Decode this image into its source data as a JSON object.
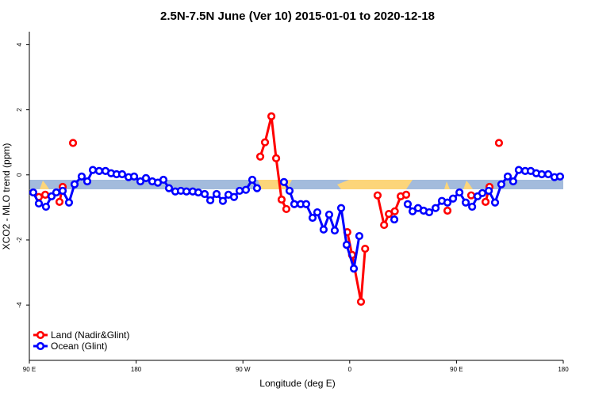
{
  "chart_data": {
    "type": "line",
    "title": "2.5N-7.5N June (Ver 10)   2015-01-01 to 2020-12-18",
    "x_label": "Longitude (deg E)",
    "y_label": "XCO2 - MLO trend (ppm)",
    "xlim": [
      90,
      540
    ],
    "xticks": [
      {
        "value": 90,
        "label": "90 E"
      },
      180,
      {
        "value": 270,
        "label": "90 W"
      },
      {
        "value": 360,
        "label": "0"
      },
      {
        "value": 450,
        "label": "90 E"
      },
      {
        "value": 540,
        "label": "180"
      }
    ],
    "ylim": [
      -5.7,
      4.4
    ],
    "yticks": [
      -4,
      -2,
      0,
      2,
      4
    ],
    "legend": "bottom-left",
    "series": [
      {
        "name": "Land (Nadir&Glint)",
        "color": "#ff0000",
        "x": [
          98,
          103.4,
          null,
          115.4,
          118.1,
          null,
          126.8,
          null,
          284.6,
          288.6,
          294,
          298,
          302.6,
          306.6,
          null,
          358,
          362,
          369.5,
          373,
          null,
          383.5,
          389,
          393,
          398,
          403,
          407.6,
          null,
          442.4,
          null,
          462.4,
          null,
          474.5,
          477.8,
          null,
          485.8
        ],
        "values": [
          -0.68,
          -0.61,
          null,
          -0.83,
          -0.37,
          null,
          0.98,
          null,
          0.56,
          1.0,
          1.8,
          0.51,
          -0.76,
          -1.05,
          null,
          -1.76,
          -2.46,
          -3.9,
          -2.27,
          null,
          -0.63,
          -1.54,
          -1.2,
          -1.12,
          -0.66,
          -0.61,
          null,
          -1.1,
          null,
          -0.63,
          null,
          -0.83,
          -0.37,
          null,
          0.98
        ]
      },
      {
        "name": "Ocean (Glint)",
        "color": "#0000ff",
        "x": [
          93.3,
          98,
          104,
          108.7,
          112.7,
          118.1,
          123.4,
          128.1,
          134.1,
          138.8,
          143.5,
          148.8,
          154.2,
          158.9,
          163.5,
          168.2,
          173.6,
          178.3,
          183.6,
          188.3,
          193.6,
          198.3,
          203,
          207.7,
          213,
          217.7,
          222.4,
          227.7,
          232.4,
          237.8,
          242.5,
          247.8,
          253.1,
          257.8,
          262.5,
          267.2,
          272.5,
          277.9,
          281.9,
          null,
          304.6,
          309.3,
          313.3,
          318.7,
          323.3,
          328.7,
          332.7,
          338,
          342.7,
          347.4,
          352.8,
          357.4,
          363.5,
          368.1,
          null,
          397.6,
          null,
          408.9,
          413,
          417.6,
          422.3,
          427,
          432.4,
          437.7,
          442.4,
          447.1,
          452.5,
          457.8,
          463.2,
          467.8,
          471.8,
          477.2,
          482.5,
          487.8,
          493.2,
          497.8,
          502.5,
          507.9,
          512.6,
          517.2,
          521.9,
          527.3,
          532.6,
          537.3
        ],
        "values": [
          -0.54,
          -0.88,
          -0.98,
          -0.66,
          -0.54,
          -0.49,
          -0.85,
          -0.29,
          -0.05,
          -0.2,
          0.15,
          0.12,
          0.12,
          0.05,
          0.02,
          0.02,
          -0.07,
          -0.05,
          -0.2,
          -0.1,
          -0.2,
          -0.24,
          -0.15,
          -0.41,
          -0.51,
          -0.49,
          -0.51,
          -0.51,
          -0.54,
          -0.59,
          -0.78,
          -0.59,
          -0.8,
          -0.61,
          -0.68,
          -0.49,
          -0.46,
          -0.15,
          -0.41,
          null,
          -0.22,
          -0.49,
          -0.9,
          -0.9,
          -0.9,
          -1.32,
          -1.15,
          -1.68,
          -1.22,
          -1.71,
          -1.02,
          -2.15,
          -2.88,
          -1.88,
          null,
          -1.37,
          null,
          -0.9,
          -1.12,
          -1.02,
          -1.1,
          -1.15,
          -1.02,
          -0.8,
          -0.85,
          -0.73,
          -0.54,
          -0.85,
          -0.98,
          -0.66,
          -0.56,
          -0.49,
          -0.85,
          -0.29,
          -0.05,
          -0.2,
          0.15,
          0.12,
          0.12,
          0.05,
          0.02,
          0.02,
          -0.07,
          -0.05
        ]
      }
    ]
  }
}
